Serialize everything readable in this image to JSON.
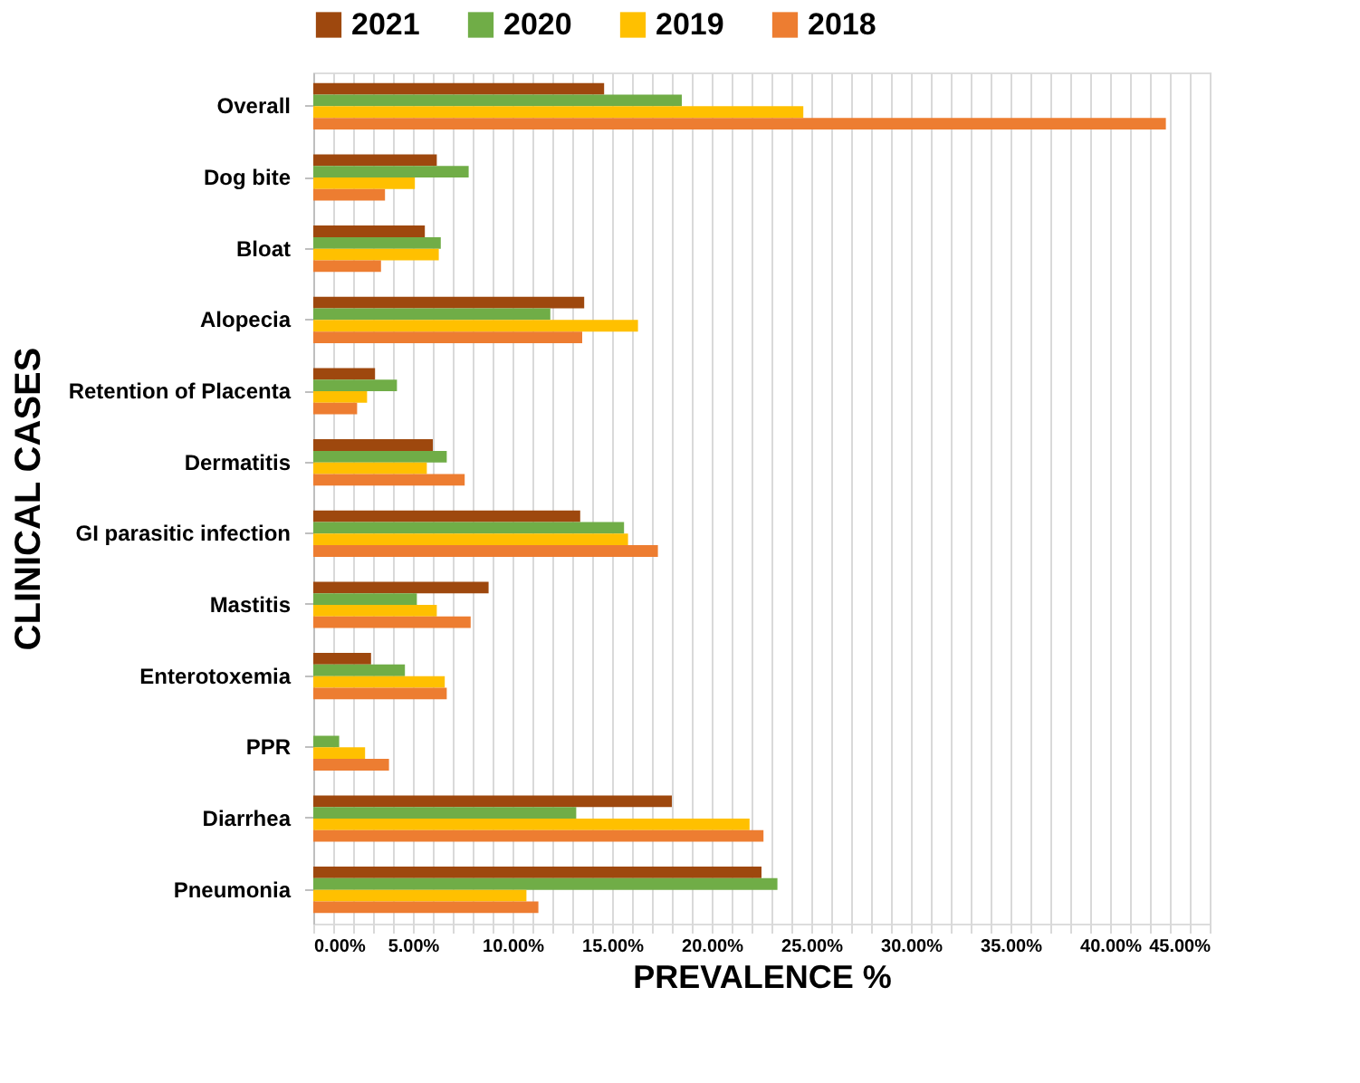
{
  "chart_data": {
    "type": "bar",
    "orientation": "horizontal",
    "xlabel": "PREVALENCE %",
    "ylabel": "CLINICAL CASES",
    "categories": [
      "Overall",
      "Dog bite",
      "Bloat",
      "Alopecia",
      "Retention of Placenta",
      "Dermatitis",
      "GI parasitic infection",
      "Mastitis",
      "Enterotoxemia",
      "PPR",
      "Diarrhea",
      "Pneumonia"
    ],
    "series": [
      {
        "name": "2021",
        "color": "#9e480e",
        "values": [
          14.6,
          6.2,
          5.6,
          13.6,
          3.1,
          6.0,
          13.4,
          8.8,
          2.9,
          0,
          18.0,
          22.5
        ]
      },
      {
        "name": "2020",
        "color": "#70ad47",
        "values": [
          18.5,
          7.8,
          6.4,
          11.9,
          4.2,
          6.7,
          15.6,
          5.2,
          4.6,
          1.3,
          13.2,
          23.3
        ]
      },
      {
        "name": "2019",
        "color": "#ffc000",
        "values": [
          24.6,
          5.1,
          6.3,
          16.3,
          2.7,
          5.7,
          15.8,
          6.2,
          6.6,
          2.6,
          21.9,
          10.7
        ]
      },
      {
        "name": "2018",
        "color": "#ed7d31",
        "values": [
          42.8,
          3.6,
          3.4,
          13.5,
          2.2,
          7.6,
          17.3,
          7.9,
          6.7,
          3.8,
          22.6,
          11.3
        ]
      }
    ],
    "xlim": [
      0,
      45
    ],
    "xticks": [
      {
        "value": 0,
        "label": "0.00%"
      },
      {
        "value": 1,
        "label": null
      },
      {
        "value": 2,
        "label": null
      },
      {
        "value": 3,
        "label": null
      },
      {
        "value": 4,
        "label": null
      },
      {
        "value": 5,
        "label": "5.00%"
      },
      {
        "value": 6,
        "label": null
      },
      {
        "value": 7,
        "label": null
      },
      {
        "value": 8,
        "label": null
      },
      {
        "value": 9,
        "label": null
      },
      {
        "value": 10,
        "label": "10.00%"
      },
      {
        "value": 11,
        "label": null
      },
      {
        "value": 12,
        "label": null
      },
      {
        "value": 13,
        "label": null
      },
      {
        "value": 14,
        "label": null
      },
      {
        "value": 15,
        "label": "15.00%"
      },
      {
        "value": 16,
        "label": null
      },
      {
        "value": 17,
        "label": null
      },
      {
        "value": 18,
        "label": null
      },
      {
        "value": 19,
        "label": null
      },
      {
        "value": 20,
        "label": "20.00%"
      },
      {
        "value": 21,
        "label": null
      },
      {
        "value": 22,
        "label": null
      },
      {
        "value": 23,
        "label": null
      },
      {
        "value": 24,
        "label": null
      },
      {
        "value": 25,
        "label": "25.00%"
      },
      {
        "value": 26,
        "label": null
      },
      {
        "value": 27,
        "label": null
      },
      {
        "value": 28,
        "label": null
      },
      {
        "value": 29,
        "label": null
      },
      {
        "value": 30,
        "label": "30.00%"
      },
      {
        "value": 31,
        "label": null
      },
      {
        "value": 32,
        "label": null
      },
      {
        "value": 33,
        "label": null
      },
      {
        "value": 34,
        "label": null
      },
      {
        "value": 35,
        "label": "35.00%"
      },
      {
        "value": 36,
        "label": null
      },
      {
        "value": 37,
        "label": null
      },
      {
        "value": 38,
        "label": null
      },
      {
        "value": 39,
        "label": null
      },
      {
        "value": 40,
        "label": "40.00%"
      },
      {
        "value": 41,
        "label": null
      },
      {
        "value": 42,
        "label": null
      },
      {
        "value": 43,
        "label": null
      },
      {
        "value": 44,
        "label": null
      },
      {
        "value": 45,
        "label": "45.00%"
      }
    ],
    "grid": "x",
    "legend": "top"
  }
}
